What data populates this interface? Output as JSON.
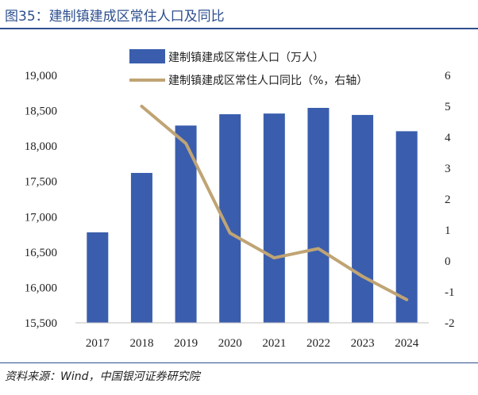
{
  "title": "图35：建制镇建成区常住人口及同比",
  "source": "资料来源：Wind，中国银河证券研究院",
  "colors": {
    "bar": "#3a5ead",
    "line": "#c0a474",
    "title": "#2e4f8f",
    "text": "#222222"
  },
  "chart_data": {
    "type": "bar",
    "categories": [
      "2017",
      "2018",
      "2019",
      "2020",
      "2021",
      "2022",
      "2023",
      "2024"
    ],
    "series": [
      {
        "name": "建制镇建成区常住人口（万人）",
        "type": "bar",
        "axis": "left",
        "values": [
          16780,
          17620,
          18290,
          18450,
          18460,
          18540,
          18440,
          18210
        ]
      },
      {
        "name": "建制镇建成区常住人口同比（%，右轴）",
        "type": "line",
        "axis": "right",
        "values": [
          null,
          5.0,
          3.8,
          0.9,
          0.1,
          0.4,
          -0.5,
          -1.25
        ]
      }
    ],
    "y_left": {
      "min": 15500,
      "max": 19000,
      "ticks": [
        "15,500",
        "16,000",
        "16,500",
        "17,000",
        "17,500",
        "18,000",
        "18,500",
        "19,000"
      ],
      "tick_values": [
        15500,
        16000,
        16500,
        17000,
        17500,
        18000,
        18500,
        19000
      ]
    },
    "y_right": {
      "min": -2,
      "max": 6,
      "ticks": [
        "-2",
        "-1",
        "0",
        "1",
        "2",
        "3",
        "4",
        "5",
        "6"
      ],
      "tick_values": [
        -2,
        -1,
        0,
        1,
        2,
        3,
        4,
        5,
        6
      ]
    },
    "legend": [
      "建制镇建成区常住人口（万人）",
      "建制镇建成区常住人口同比（%，右轴）"
    ],
    "legend_position": "top",
    "grid": false
  }
}
